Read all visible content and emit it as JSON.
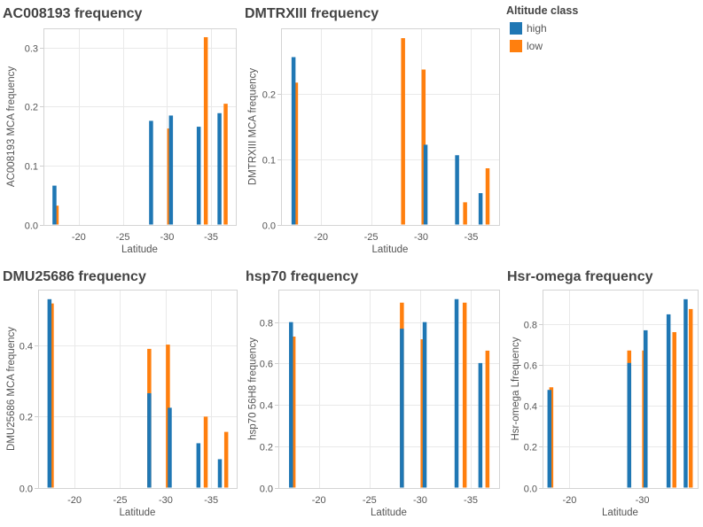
{
  "legend": {
    "title": "Altitude class",
    "items": [
      {
        "label": "high",
        "color": "#1f77b4"
      },
      {
        "label": "low",
        "color": "#ff7f0e"
      }
    ]
  },
  "chart_data": [
    {
      "type": "bar",
      "title": "AC008193 frequency",
      "xlabel": "Latitude",
      "ylabel": "AC008193 MCA frequency",
      "xlim": [
        -16,
        -37.8
      ],
      "ylim": [
        0,
        0.333
      ],
      "xticks": [
        -20,
        -25,
        -30,
        -35
      ],
      "xtick_labels": [
        "-20",
        "-25",
        "-30",
        "-35"
      ],
      "yticks": [
        0,
        0.1,
        0.2,
        0.3
      ],
      "ytick_labels": [
        "0.0",
        "0.1",
        "0.2",
        "0.3"
      ],
      "grid": true,
      "legend": "right",
      "series": [
        {
          "name": "high",
          "color": "#1f77b4",
          "x": [
            -17.25,
            -28.2,
            -30.45,
            -33.6,
            -35.95
          ],
          "values": [
            0.066,
            0.176,
            0.185,
            0.166,
            0.189
          ]
        },
        {
          "name": "low",
          "color": "#ff7f0e",
          "x": [
            -17.5,
            -28.2,
            -30.25,
            -34.4,
            -36.65
          ],
          "values": [
            0.032,
            null,
            0.163,
            0.318,
            0.205
          ]
        }
      ]
    },
    {
      "type": "bar",
      "title": "DMTRXIII frequency",
      "xlabel": "Latitude",
      "ylabel": "DMTRXIII MCA frequency",
      "xlim": [
        -16,
        -37.8
      ],
      "ylim": [
        0,
        0.3
      ],
      "xticks": [
        -20,
        -25,
        -30,
        -35
      ],
      "xtick_labels": [
        "-20",
        "-25",
        "-30",
        "-35"
      ],
      "yticks": [
        0,
        0.1,
        0.2
      ],
      "ytick_labels": [
        "0.0",
        "0.1",
        "0.2"
      ],
      "grid": true,
      "legend": "right",
      "series": [
        {
          "name": "high",
          "color": "#1f77b4",
          "x": [
            -17.25,
            -28.2,
            -30.45,
            -33.6,
            -35.95
          ],
          "values": [
            0.256,
            null,
            0.122,
            0.106,
            0.048
          ]
        },
        {
          "name": "low",
          "color": "#ff7f0e",
          "x": [
            -17.5,
            -28.2,
            -30.25,
            -34.4,
            -36.65
          ],
          "values": [
            0.217,
            0.285,
            0.237,
            0.034,
            0.086
          ]
        }
      ]
    },
    {
      "type": "bar",
      "title": "DMU25686 frequency",
      "xlabel": "Latitude",
      "ylabel": "DMU25686 MCA frequency",
      "xlim": [
        -16,
        -37.8
      ],
      "ylim": [
        0,
        0.558
      ],
      "xticks": [
        -20,
        -25,
        -30,
        -35
      ],
      "xtick_labels": [
        "-20",
        "-25",
        "-30",
        "-35"
      ],
      "yticks": [
        0,
        0.2,
        0.4
      ],
      "ytick_labels": [
        "0.0",
        "0.2",
        "0.4"
      ],
      "grid": true,
      "legend": "right",
      "series": [
        {
          "name": "high",
          "color": "#1f77b4",
          "x": [
            -17.25,
            -28.2,
            -30.45,
            -33.6,
            -35.95
          ],
          "values": [
            0.531,
            0.266,
            0.225,
            0.125,
            0.08
          ]
        },
        {
          "name": "low",
          "color": "#ff7f0e",
          "x": [
            -17.5,
            -28.2,
            -30.25,
            -34.4,
            -36.65
          ],
          "values": [
            0.519,
            0.391,
            0.403,
            0.2,
            0.157
          ]
        }
      ]
    },
    {
      "type": "bar",
      "title": "hsp70 frequency",
      "xlabel": "Latitude",
      "ylabel": "hsp70 56H8 frequency",
      "xlim": [
        -16,
        -37.8
      ],
      "ylim": [
        0,
        0.957
      ],
      "xticks": [
        -20,
        -25,
        -30,
        -35
      ],
      "xtick_labels": [
        "-20",
        "-25",
        "-30",
        "-35"
      ],
      "yticks": [
        0,
        0.2,
        0.4,
        0.6,
        0.8
      ],
      "ytick_labels": [
        "0.0",
        "0.2",
        "0.4",
        "0.6",
        "0.8"
      ],
      "grid": true,
      "legend": "right",
      "series": [
        {
          "name": "high",
          "color": "#1f77b4",
          "x": [
            -17.25,
            -28.2,
            -30.45,
            -33.6,
            -35.95
          ],
          "values": [
            0.8,
            0.768,
            0.8,
            0.911,
            0.602
          ]
        },
        {
          "name": "low",
          "color": "#ff7f0e",
          "x": [
            -17.5,
            -28.2,
            -30.25,
            -34.4,
            -36.65
          ],
          "values": [
            0.73,
            0.894,
            0.717,
            0.894,
            0.662
          ]
        }
      ]
    },
    {
      "type": "bar",
      "title": "Hsr-omega frequency",
      "xlabel": "Latitude",
      "ylabel": "Hsr-omega Lfrequency",
      "xlim": [
        -16.3,
        -37.6
      ],
      "ylim": [
        0,
        0.969
      ],
      "xticks": [
        -20,
        -30
      ],
      "xtick_labels": [
        "-20",
        "-30"
      ],
      "yticks": [
        0,
        0.2,
        0.4,
        0.6,
        0.8
      ],
      "ytick_labels": [
        "0.0",
        "0.2",
        "0.4",
        "0.6",
        "0.8"
      ],
      "grid": true,
      "legend": "right",
      "series": [
        {
          "name": "high",
          "color": "#1f77b4",
          "x": [
            -17.25,
            -28.2,
            -30.45,
            -33.6,
            -35.95
          ],
          "values": [
            0.478,
            0.61,
            0.77,
            0.848,
            0.922
          ]
        },
        {
          "name": "low",
          "color": "#ff7f0e",
          "x": [
            -17.5,
            -28.2,
            -30.25,
            -34.4,
            -36.65
          ],
          "values": [
            0.491,
            0.671,
            0.671,
            0.761,
            0.874
          ]
        }
      ]
    }
  ]
}
